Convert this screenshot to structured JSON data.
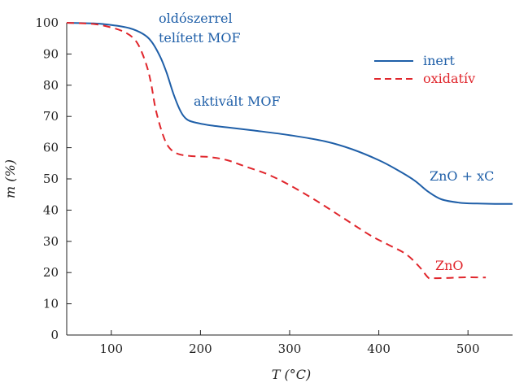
{
  "chart_data": {
    "type": "line",
    "xlabel": "T (°C)",
    "ylabel": "m (%)",
    "xlim": [
      50,
      550
    ],
    "ylim": [
      0,
      100
    ],
    "xticks": [
      100,
      200,
      300,
      400,
      500
    ],
    "yticks": [
      0,
      10,
      20,
      30,
      40,
      50,
      60,
      70,
      80,
      90,
      100
    ],
    "grid": false,
    "legend_position": "top-right",
    "series": [
      {
        "name": "inert",
        "color": "#1f5fa8",
        "dash": "solid",
        "x": [
          50,
          80,
          100,
          120,
          135,
          145,
          155,
          162,
          170,
          178,
          185,
          195,
          210,
          230,
          260,
          300,
          340,
          370,
          400,
          420,
          440,
          455,
          470,
          490,
          510,
          530,
          550
        ],
        "y": [
          100,
          99.8,
          99.3,
          98.3,
          96.5,
          94,
          89,
          84,
          77,
          71.5,
          69,
          68,
          67.2,
          66.5,
          65.5,
          64,
          62,
          59.5,
          56,
          53,
          49.5,
          46,
          43.5,
          42.4,
          42.1,
          42,
          42
        ]
      },
      {
        "name": "oxidatív",
        "color": "#e0262c",
        "dash": "dashed",
        "x": [
          50,
          80,
          100,
          115,
          125,
          132,
          140,
          145,
          150,
          158,
          165,
          175,
          190,
          210,
          230,
          250,
          275,
          300,
          330,
          360,
          390,
          410,
          430,
          445,
          455,
          460,
          480,
          500,
          520
        ],
        "y": [
          100,
          99.6,
          98.5,
          97,
          95,
          92,
          86,
          80,
          72,
          64,
          60,
          58,
          57.3,
          57,
          56,
          54,
          51.5,
          48,
          43,
          37.5,
          32,
          29,
          26,
          22,
          18.5,
          18.2,
          18.3,
          18.5,
          18.4
        ]
      }
    ],
    "annotations": [
      {
        "text": "oldószerrel",
        "color": "#1f5fa8"
      },
      {
        "text": "telített MOF",
        "color": "#1f5fa8"
      },
      {
        "text": "aktivált MOF",
        "color": "#1f5fa8"
      },
      {
        "text": "ZnO + xC",
        "color": "#1f5fa8"
      },
      {
        "text": "ZnO",
        "color": "#e0262c"
      }
    ]
  }
}
